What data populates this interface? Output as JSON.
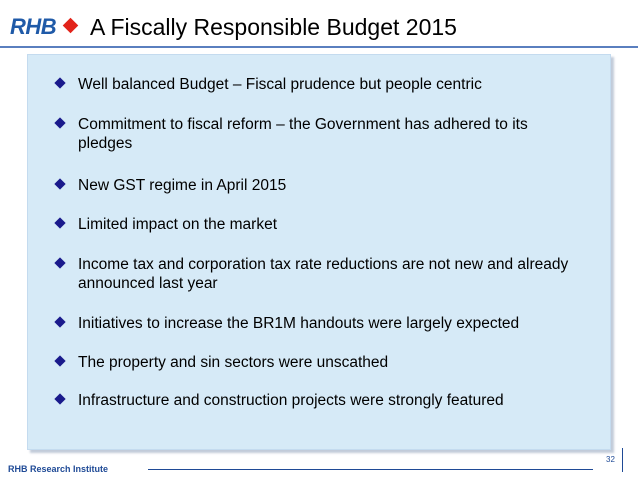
{
  "logo": {
    "text": "RHB"
  },
  "slide": {
    "title": "A Fiscally Responsible Budget 2015",
    "bullets": [
      "Well balanced Budget – Fiscal prudence but people centric",
      "Commitment to fiscal reform – the Government has adhered to its pledges",
      "New GST regime in April 2015",
      "Limited impact on the market",
      "Income tax and corporation tax rate reductions are not new and already announced last year",
      "Initiatives to increase the BR1M handouts were largely expected",
      "The property and sin sectors were unscathed",
      "Infrastructure and construction projects were strongly featured"
    ]
  },
  "footer": {
    "label": "RHB Research Institute",
    "page_number": "32"
  },
  "colors": {
    "logo_blue": "#1f5aa8",
    "logo_red": "#e2231a",
    "panel_background": "#d6eaf7",
    "bullet_icon": "#1a1a8c",
    "accent_rule": "#5a7fbf"
  },
  "icons": {
    "bullet": "diamond-bullet-icon",
    "logo_mark": "red-diamond-icon"
  }
}
